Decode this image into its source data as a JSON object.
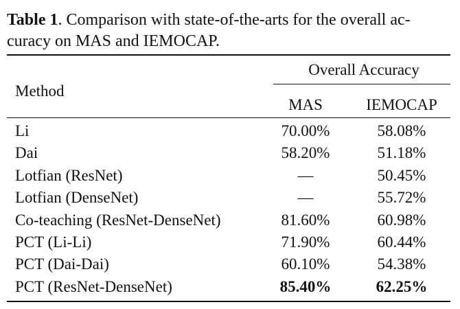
{
  "caption": {
    "label": "Table 1",
    "text": ". Comparison with state-of-the-arts for the overall ac-",
    "text2": "curacy on MAS and IEMOCAP."
  },
  "table": {
    "header": {
      "method": "Method",
      "group": "Overall Accuracy",
      "col1": "MAS",
      "col2": "IEMOCAP"
    },
    "rows": [
      {
        "method": "Li",
        "mas": "70.00%",
        "iemocap": "58.08%"
      },
      {
        "method": "Dai",
        "mas": "58.20%",
        "iemocap": "51.18%"
      },
      {
        "method": "Lotfian (ResNet)",
        "mas": "—",
        "iemocap": "50.45%"
      },
      {
        "method": "Lotfian (DenseNet)",
        "mas": "—",
        "iemocap": "55.72%"
      },
      {
        "method": "Co-teaching (ResNet-DenseNet)",
        "mas": "81.60%",
        "iemocap": "60.98%"
      },
      {
        "method": "PCT (Li-Li)",
        "mas": "71.90%",
        "iemocap": "60.44%"
      },
      {
        "method": "PCT (Dai-Dai)",
        "mas": "60.10%",
        "iemocap": "54.38%"
      },
      {
        "method": "PCT (ResNet-DenseNet)",
        "mas": "85.40%",
        "iemocap": "62.25%"
      }
    ]
  }
}
